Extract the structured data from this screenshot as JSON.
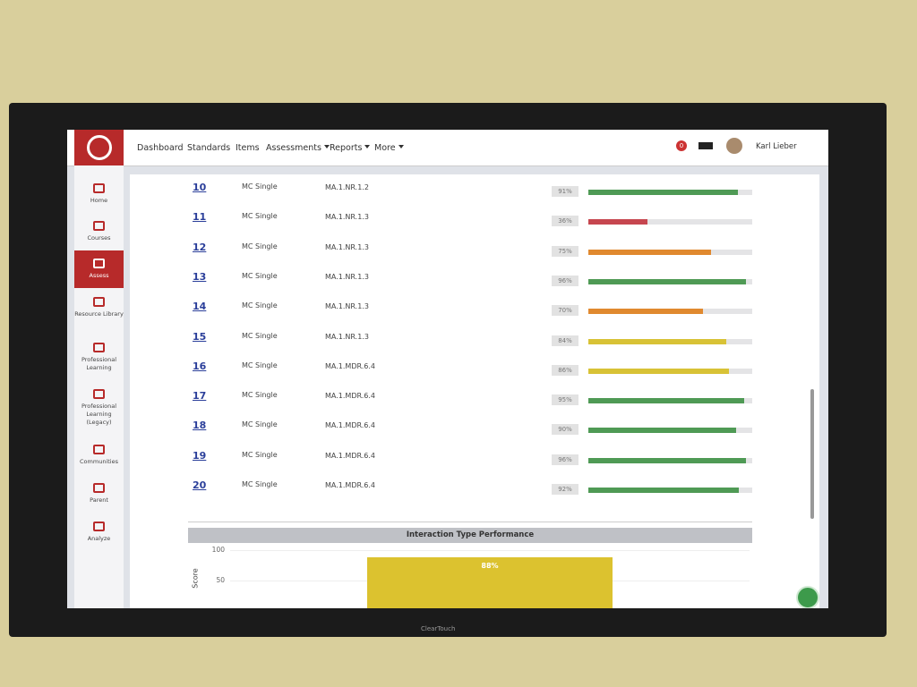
{
  "header": {
    "nav": [
      "Dashboard",
      "Standards",
      "Items",
      "Assessments",
      "Reports",
      "More"
    ],
    "notification_count": "0",
    "user_name": "Karl Lieber"
  },
  "sidebar": [
    "Home",
    "Courses",
    "Assess",
    "Resource Library",
    "Professional Learning",
    "Professional Learning (Legacy)",
    "Communities",
    "Parent",
    "Analyze"
  ],
  "table": {
    "rows": [
      {
        "number": "10",
        "type": "MC Single",
        "standard": "MA.1.NR.1.2",
        "score": 91,
        "score_label": "91%",
        "color": "#4f9a55"
      },
      {
        "number": "11",
        "type": "MC Single",
        "standard": "MA.1.NR.1.3",
        "score": 36,
        "score_label": "36%",
        "color": "#c6464f"
      },
      {
        "number": "12",
        "type": "MC Single",
        "standard": "MA.1.NR.1.3",
        "score": 75,
        "score_label": "75%",
        "color": "#e0892f"
      },
      {
        "number": "13",
        "type": "MC Single",
        "standard": "MA.1.NR.1.3",
        "score": 96,
        "score_label": "96%",
        "color": "#4f9a55"
      },
      {
        "number": "14",
        "type": "MC Single",
        "standard": "MA.1.NR.1.3",
        "score": 70,
        "score_label": "70%",
        "color": "#e0892f"
      },
      {
        "number": "15",
        "type": "MC Single",
        "standard": "MA.1.NR.1.3",
        "score": 84,
        "score_label": "84%",
        "color": "#d8c236"
      },
      {
        "number": "16",
        "type": "MC Single",
        "standard": "MA.1.MDR.6.4",
        "score": 86,
        "score_label": "86%",
        "color": "#d8c236"
      },
      {
        "number": "17",
        "type": "MC Single",
        "standard": "MA.1.MDR.6.4",
        "score": 95,
        "score_label": "95%",
        "color": "#4f9a55"
      },
      {
        "number": "18",
        "type": "MC Single",
        "standard": "MA.1.MDR.6.4",
        "score": 90,
        "score_label": "90%",
        "color": "#4f9a55"
      },
      {
        "number": "19",
        "type": "MC Single",
        "standard": "MA.1.MDR.6.4",
        "score": 96,
        "score_label": "96%",
        "color": "#4f9a55"
      },
      {
        "number": "20",
        "type": "MC Single",
        "standard": "MA.1.MDR.6.4",
        "score": 92,
        "score_label": "92%",
        "color": "#4f9a55"
      }
    ]
  },
  "chart": {
    "type": "bar",
    "title": "Interaction Type Performance",
    "ylabel": "Score",
    "ylim": [
      0,
      100
    ],
    "yticks": [
      100,
      50
    ],
    "values": [
      88
    ],
    "value_labels": [
      "88%"
    ],
    "color": "#dcc22f"
  },
  "monitor": {
    "brand": "ClearTouch"
  }
}
